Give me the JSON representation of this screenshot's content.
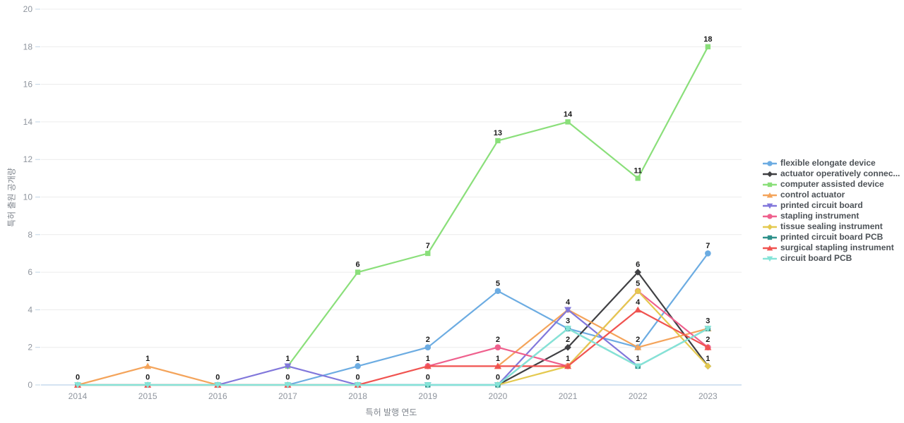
{
  "chart_data": {
    "type": "line",
    "title": "",
    "xlabel": "특허 발행 연도",
    "ylabel": "특허 출원 공개량",
    "categories": [
      "2014",
      "2015",
      "2016",
      "2017",
      "2018",
      "2019",
      "2020",
      "2021",
      "2022",
      "2023"
    ],
    "ylim": [
      0,
      20
    ],
    "yticks": [
      0,
      2,
      4,
      6,
      8,
      10,
      12,
      14,
      16,
      18,
      20
    ],
    "grid": true,
    "legend_position": "middle-right",
    "point_labels_shown": true,
    "series": [
      {
        "name": "flexible elongate device",
        "color": "#6CACE2",
        "marker": "circle",
        "values": [
          null,
          null,
          null,
          0,
          1,
          2,
          5,
          3,
          2,
          7
        ]
      },
      {
        "name": "actuator operatively connec...",
        "color": "#404043",
        "marker": "diamond",
        "values": [
          null,
          null,
          null,
          null,
          null,
          null,
          0,
          2,
          6,
          1
        ]
      },
      {
        "name": "computer assisted device",
        "color": "#8ADF7A",
        "marker": "square",
        "values": [
          null,
          null,
          null,
          1,
          6,
          7,
          13,
          14,
          11,
          18
        ]
      },
      {
        "name": "control actuator",
        "color": "#F4A45B",
        "marker": "triangle-up",
        "values": [
          0,
          1,
          0,
          null,
          null,
          null,
          1,
          4,
          2,
          3
        ]
      },
      {
        "name": "printed circuit board",
        "color": "#8177DB",
        "marker": "triangle-down",
        "values": [
          null,
          null,
          0,
          1,
          0,
          0,
          0,
          4,
          1,
          null
        ]
      },
      {
        "name": "stapling instrument",
        "color": "#EF608D",
        "marker": "circle",
        "values": [
          null,
          null,
          null,
          null,
          null,
          1,
          2,
          1,
          5,
          2
        ]
      },
      {
        "name": "tissue sealing instrument",
        "color": "#E4C94F",
        "marker": "diamond",
        "values": [
          null,
          null,
          null,
          null,
          null,
          null,
          0,
          1,
          5,
          1
        ]
      },
      {
        "name": "printed circuit board PCB",
        "color": "#2F918B",
        "marker": "square",
        "values": [
          0,
          0,
          0,
          0,
          0,
          0,
          0,
          3,
          1,
          3
        ]
      },
      {
        "name": "surgical stapling instrument",
        "color": "#F05350",
        "marker": "triangle-up",
        "values": [
          0,
          0,
          0,
          0,
          0,
          1,
          1,
          1,
          4,
          2
        ]
      },
      {
        "name": "circuit board PCB",
        "color": "#85E4D8",
        "marker": "triangle-down",
        "values": [
          0,
          0,
          0,
          0,
          0,
          0,
          0,
          3,
          1,
          3
        ]
      }
    ]
  },
  "styles": {
    "background": "#FFFFFF",
    "grid_color": "#ECECEC",
    "axis_line_color": "#A9C7E4",
    "tick_color": "#C2D4E4",
    "tick_label_color": "#8F959E",
    "axis_title_color": "#80868E",
    "value_label_color": "#1A1A1A",
    "legend_text_color": "#4D5257"
  }
}
